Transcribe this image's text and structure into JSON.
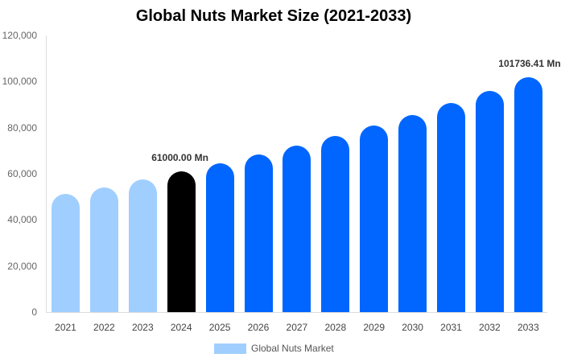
{
  "chart_data": {
    "type": "bar",
    "title": "Global Nuts Market Size (2021-2033)",
    "xlabel": "",
    "ylabel": "",
    "ylim": [
      0,
      120000
    ],
    "yticks": [
      "0",
      "20,000",
      "40,000",
      "60,000",
      "80,000",
      "100,000",
      "120,000"
    ],
    "categories": [
      "2021",
      "2022",
      "2023",
      "2024",
      "2025",
      "2026",
      "2027",
      "2028",
      "2029",
      "2030",
      "2031",
      "2032",
      "2033"
    ],
    "series": [
      {
        "name": "Global Nuts Market",
        "values": [
          51300,
          54100,
          57500,
          61000,
          64500,
          68400,
          72200,
          76400,
          80900,
          85400,
          90700,
          95900,
          101736.41
        ],
        "colors": [
          "#a0cfff",
          "#a0cfff",
          "#a0cfff",
          "#000000",
          "#0066ff",
          "#0066ff",
          "#0066ff",
          "#0066ff",
          "#0066ff",
          "#0066ff",
          "#0066ff",
          "#0066ff",
          "#0066ff"
        ]
      }
    ],
    "annotations": [
      {
        "category": "2024",
        "text": "61000.00 Mn"
      },
      {
        "category": "2033",
        "text": "101736.41 Mn"
      }
    ],
    "legend": {
      "position": "bottom",
      "entries": [
        "Global Nuts Market"
      ],
      "swatch_color": "#a0cfff"
    },
    "grid": false
  }
}
